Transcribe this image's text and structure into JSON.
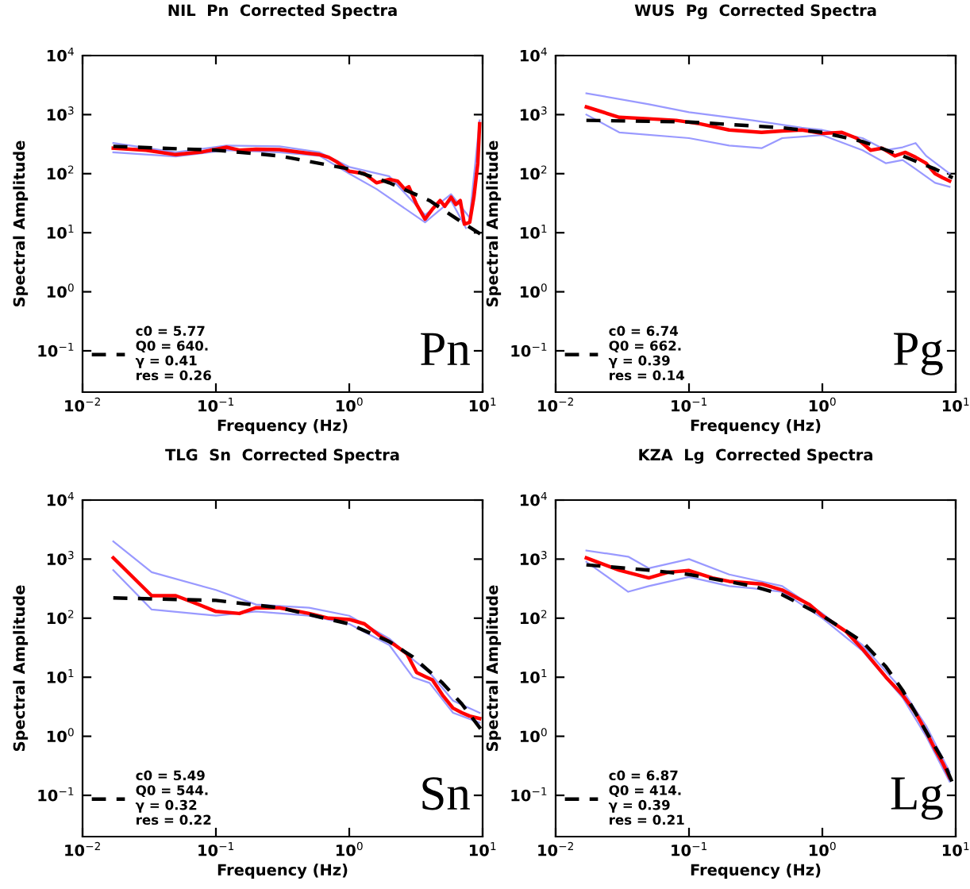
{
  "chart_data": [
    {
      "type": "line",
      "title": "NIL  Pn  Corrected Spectra",
      "xlabel": "Frequency (Hz)",
      "ylabel": "Spectral Amplitude",
      "log": "xy",
      "grid": false,
      "legend": "bottom left",
      "xlim": [
        0.01,
        10
      ],
      "ylim": [
        0.02,
        10000
      ],
      "xticks": [
        {
          "value": 0.01,
          "label": "10$^{−2}$"
        },
        {
          "value": 0.1,
          "label": "10$^{−1}$"
        },
        {
          "value": 1,
          "label": "10$^{0}$"
        },
        {
          "value": 10,
          "label": "10$^{1}$"
        }
      ],
      "yticks": [
        {
          "value": 0.1,
          "label": "10$^{−1}$"
        },
        {
          "value": 1,
          "label": "10$^{0}$"
        },
        {
          "value": 10,
          "label": "10$^{1}$"
        },
        {
          "value": 100,
          "label": "10$^{2}$"
        },
        {
          "value": 1000,
          "label": "10$^{3}$"
        },
        {
          "value": 10000,
          "label": "10$^{4}$"
        }
      ],
      "annotations": [
        "Pn"
      ],
      "series": [
        {
          "color": "#9999ff",
          "line_style": "solid",
          "x": [
            0.017,
            0.05,
            0.12,
            0.3,
            0.6,
            1.0,
            2.0,
            3.7,
            5.8,
            8.0,
            9.5
          ],
          "values": [
            330,
            230,
            300,
            290,
            230,
            130,
            90,
            20,
            45,
            18,
            800
          ]
        },
        {
          "color": "#9999ff",
          "line_style": "solid",
          "x": [
            0.017,
            0.05,
            0.12,
            0.3,
            0.6,
            1.0,
            1.6,
            3.7,
            5.8,
            7.5
          ],
          "values": [
            230,
            195,
            250,
            230,
            200,
            100,
            55,
            15,
            35,
            12
          ]
        },
        {
          "color": "#ff0000",
          "line_style": "solid",
          "x": [
            0.017,
            0.03,
            0.05,
            0.08,
            0.12,
            0.15,
            0.2,
            0.3,
            0.5,
            0.6,
            0.7,
            0.8,
            1.0,
            1.3,
            1.6,
            2.0,
            2.3,
            2.6,
            2.8,
            3.2,
            3.7,
            4.2,
            4.8,
            5.2,
            5.8,
            6.3,
            6.8,
            7.3,
            8.0,
            8.6,
            9.2,
            9.5
          ],
          "values": [
            270,
            250,
            210,
            235,
            280,
            250,
            260,
            255,
            220,
            210,
            190,
            160,
            110,
            100,
            70,
            80,
            75,
            55,
            60,
            30,
            17,
            25,
            35,
            28,
            40,
            30,
            35,
            14,
            15,
            40,
            150,
            700
          ]
        },
        {
          "name": "c0 = 5.77\nQ0 = 640.\nγ = 0.41\nres = 0.26",
          "color": "#000000",
          "line_style": "dashed",
          "x": [
            0.017,
            0.1,
            0.3,
            1,
            2,
            4,
            7,
            10
          ],
          "values": [
            290,
            250,
            200,
            120,
            70,
            35,
            15,
            9
          ]
        }
      ]
    },
    {
      "type": "line",
      "title": "WUS  Pg  Corrected Spectra",
      "xlabel": "Frequency (Hz)",
      "ylabel": "Spectral Amplitude",
      "log": "xy",
      "grid": false,
      "legend": "bottom left",
      "xlim": [
        0.01,
        10
      ],
      "ylim": [
        0.02,
        10000
      ],
      "xticks": [
        {
          "value": 0.01,
          "label": "10$^{−2}$"
        },
        {
          "value": 0.1,
          "label": "10$^{−1}$"
        },
        {
          "value": 1,
          "label": "10$^{0}$"
        },
        {
          "value": 10,
          "label": "10$^{1}$"
        }
      ],
      "yticks": [
        {
          "value": 0.1,
          "label": "10$^{−1}$"
        },
        {
          "value": 1,
          "label": "10$^{0}$"
        },
        {
          "value": 10,
          "label": "10$^{1}$"
        },
        {
          "value": 100,
          "label": "10$^{2}$"
        },
        {
          "value": 1000,
          "label": "10$^{3}$"
        },
        {
          "value": 10000,
          "label": "10$^{4}$"
        }
      ],
      "annotations": [
        "Pg"
      ],
      "series": [
        {
          "color": "#9999ff",
          "line_style": "solid",
          "x": [
            0.017,
            0.05,
            0.1,
            0.3,
            0.7,
            1.0,
            2,
            3,
            4,
            5,
            6,
            9
          ],
          "values": [
            2300,
            1500,
            1100,
            800,
            600,
            550,
            400,
            250,
            280,
            330,
            200,
            100
          ]
        },
        {
          "color": "#9999ff",
          "line_style": "solid",
          "x": [
            0.017,
            0.03,
            0.1,
            0.2,
            0.35,
            0.5,
            1.0,
            2,
            3,
            4,
            5,
            7,
            9
          ],
          "values": [
            1000,
            500,
            400,
            300,
            270,
            400,
            450,
            250,
            150,
            170,
            120,
            70,
            60
          ]
        },
        {
          "color": "#ff0000",
          "line_style": "solid",
          "x": [
            0.017,
            0.03,
            0.05,
            0.08,
            0.12,
            0.2,
            0.35,
            0.5,
            0.7,
            1.0,
            1.4,
            1.8,
            2.3,
            2.8,
            3.5,
            4.2,
            5,
            6,
            7,
            8,
            9
          ],
          "values": [
            1350,
            900,
            850,
            800,
            700,
            550,
            500,
            530,
            550,
            480,
            500,
            400,
            250,
            270,
            200,
            230,
            190,
            150,
            100,
            85,
            75
          ]
        },
        {
          "name": "c0 = 6.74\nQ0 = 662.\nγ = 0.39\nres = 0.14",
          "color": "#000000",
          "line_style": "dashed",
          "x": [
            0.017,
            0.1,
            0.5,
            1,
            2,
            4,
            7,
            9.5
          ],
          "values": [
            800,
            750,
            600,
            500,
            350,
            200,
            120,
            85
          ]
        }
      ]
    },
    {
      "type": "line",
      "title": "TLG  Sn  Corrected Spectra",
      "xlabel": "Frequency (Hz)",
      "ylabel": "Spectral Amplitude",
      "log": "xy",
      "grid": false,
      "legend": "bottom left",
      "xlim": [
        0.01,
        10
      ],
      "ylim": [
        0.02,
        10000
      ],
      "xticks": [
        {
          "value": 0.01,
          "label": "10$^{−2}$"
        },
        {
          "value": 0.1,
          "label": "10$^{−1}$"
        },
        {
          "value": 1,
          "label": "10$^{0}$"
        },
        {
          "value": 10,
          "label": "10$^{1}$"
        }
      ],
      "yticks": [
        {
          "value": 0.1,
          "label": "10$^{−1}$"
        },
        {
          "value": 1,
          "label": "10$^{0}$"
        },
        {
          "value": 10,
          "label": "10$^{1}$"
        },
        {
          "value": 100,
          "label": "10$^{2}$"
        },
        {
          "value": 1000,
          "label": "10$^{3}$"
        },
        {
          "value": 10000,
          "label": "10$^{4}$"
        }
      ],
      "annotations": [
        "Sn"
      ],
      "series": [
        {
          "color": "#9999ff",
          "line_style": "solid",
          "x": [
            0.017,
            0.033,
            0.1,
            0.2,
            0.5,
            1,
            2,
            3,
            4,
            6,
            9.5
          ],
          "values": [
            2000,
            600,
            300,
            170,
            150,
            110,
            45,
            20,
            12,
            4,
            2.5
          ]
        },
        {
          "color": "#9999ff",
          "line_style": "solid",
          "x": [
            0.017,
            0.033,
            0.1,
            0.2,
            0.5,
            1,
            2,
            3,
            4,
            6,
            9.5
          ],
          "values": [
            650,
            140,
            110,
            130,
            110,
            80,
            35,
            10,
            8,
            2.5,
            1.7
          ]
        },
        {
          "color": "#ff0000",
          "line_style": "solid",
          "x": [
            0.017,
            0.033,
            0.05,
            0.07,
            0.1,
            0.15,
            0.2,
            0.3,
            0.5,
            0.7,
            1.0,
            1.3,
            1.7,
            2.2,
            2.7,
            3.2,
            3.8,
            4.2,
            5,
            6,
            7,
            8,
            9.5
          ],
          "values": [
            1050,
            240,
            240,
            180,
            130,
            120,
            150,
            150,
            120,
            100,
            95,
            80,
            50,
            35,
            25,
            12,
            10,
            9,
            5,
            3,
            2.5,
            2.2,
            2.0
          ]
        },
        {
          "name": "c0 = 5.49\nQ0 = 544.\nγ = 0.32\nres = 0.22",
          "color": "#000000",
          "line_style": "dashed",
          "x": [
            0.017,
            0.1,
            0.3,
            1,
            2,
            3,
            5,
            7,
            10
          ],
          "values": [
            220,
            200,
            150,
            80,
            40,
            22,
            8,
            3.5,
            1.2
          ]
        }
      ]
    },
    {
      "type": "line",
      "title": "KZA  Lg  Corrected Spectra",
      "xlabel": "Frequency (Hz)",
      "ylabel": "Spectral Amplitude",
      "log": "xy",
      "grid": false,
      "legend": "bottom left",
      "xlim": [
        0.01,
        10
      ],
      "ylim": [
        0.02,
        10000
      ],
      "xticks": [
        {
          "value": 0.01,
          "label": "10$^{−2}$"
        },
        {
          "value": 0.1,
          "label": "10$^{−1}$"
        },
        {
          "value": 1,
          "label": "10$^{0}$"
        },
        {
          "value": 10,
          "label": "10$^{1}$"
        }
      ],
      "yticks": [
        {
          "value": 0.1,
          "label": "10$^{−1}$"
        },
        {
          "value": 1,
          "label": "10$^{0}$"
        },
        {
          "value": 10,
          "label": "10$^{1}$"
        },
        {
          "value": 100,
          "label": "10$^{2}$"
        },
        {
          "value": 1000,
          "label": "10$^{3}$"
        },
        {
          "value": 10000,
          "label": "10$^{4}$"
        }
      ],
      "annotations": [
        "Lg"
      ],
      "series": [
        {
          "color": "#9999ff",
          "line_style": "solid",
          "x": [
            0.017,
            0.035,
            0.05,
            0.1,
            0.2,
            0.5,
            1,
            2,
            4,
            6,
            9
          ],
          "values": [
            1400,
            1100,
            700,
            1000,
            550,
            350,
            120,
            35,
            6,
            1.5,
            0.25
          ]
        },
        {
          "color": "#9999ff",
          "line_style": "solid",
          "x": [
            0.017,
            0.035,
            0.05,
            0.1,
            0.2,
            0.3,
            0.5,
            1,
            2,
            4,
            6,
            9
          ],
          "values": [
            900,
            280,
            350,
            500,
            350,
            320,
            280,
            100,
            28,
            4.5,
            1.0,
            0.17
          ]
        },
        {
          "color": "#ff0000",
          "line_style": "solid",
          "x": [
            0.017,
            0.03,
            0.05,
            0.07,
            0.1,
            0.15,
            0.2,
            0.35,
            0.5,
            0.8,
            1.0,
            1.5,
            2,
            3,
            4,
            5,
            6,
            7,
            8,
            9
          ],
          "values": [
            1050,
            650,
            480,
            600,
            640,
            480,
            420,
            380,
            300,
            170,
            110,
            60,
            30,
            10,
            5,
            2.5,
            1.2,
            0.6,
            0.35,
            0.2
          ]
        },
        {
          "name": "c0 = 6.87\nQ0 = 414.\nγ = 0.39\nres = 0.21",
          "color": "#000000",
          "line_style": "dashed",
          "x": [
            0.017,
            0.05,
            0.1,
            0.3,
            0.5,
            1,
            2,
            3,
            4,
            6,
            8,
            10
          ],
          "values": [
            800,
            650,
            550,
            350,
            250,
            110,
            40,
            15,
            6,
            1.2,
            0.4,
            0.12
          ]
        }
      ]
    }
  ]
}
